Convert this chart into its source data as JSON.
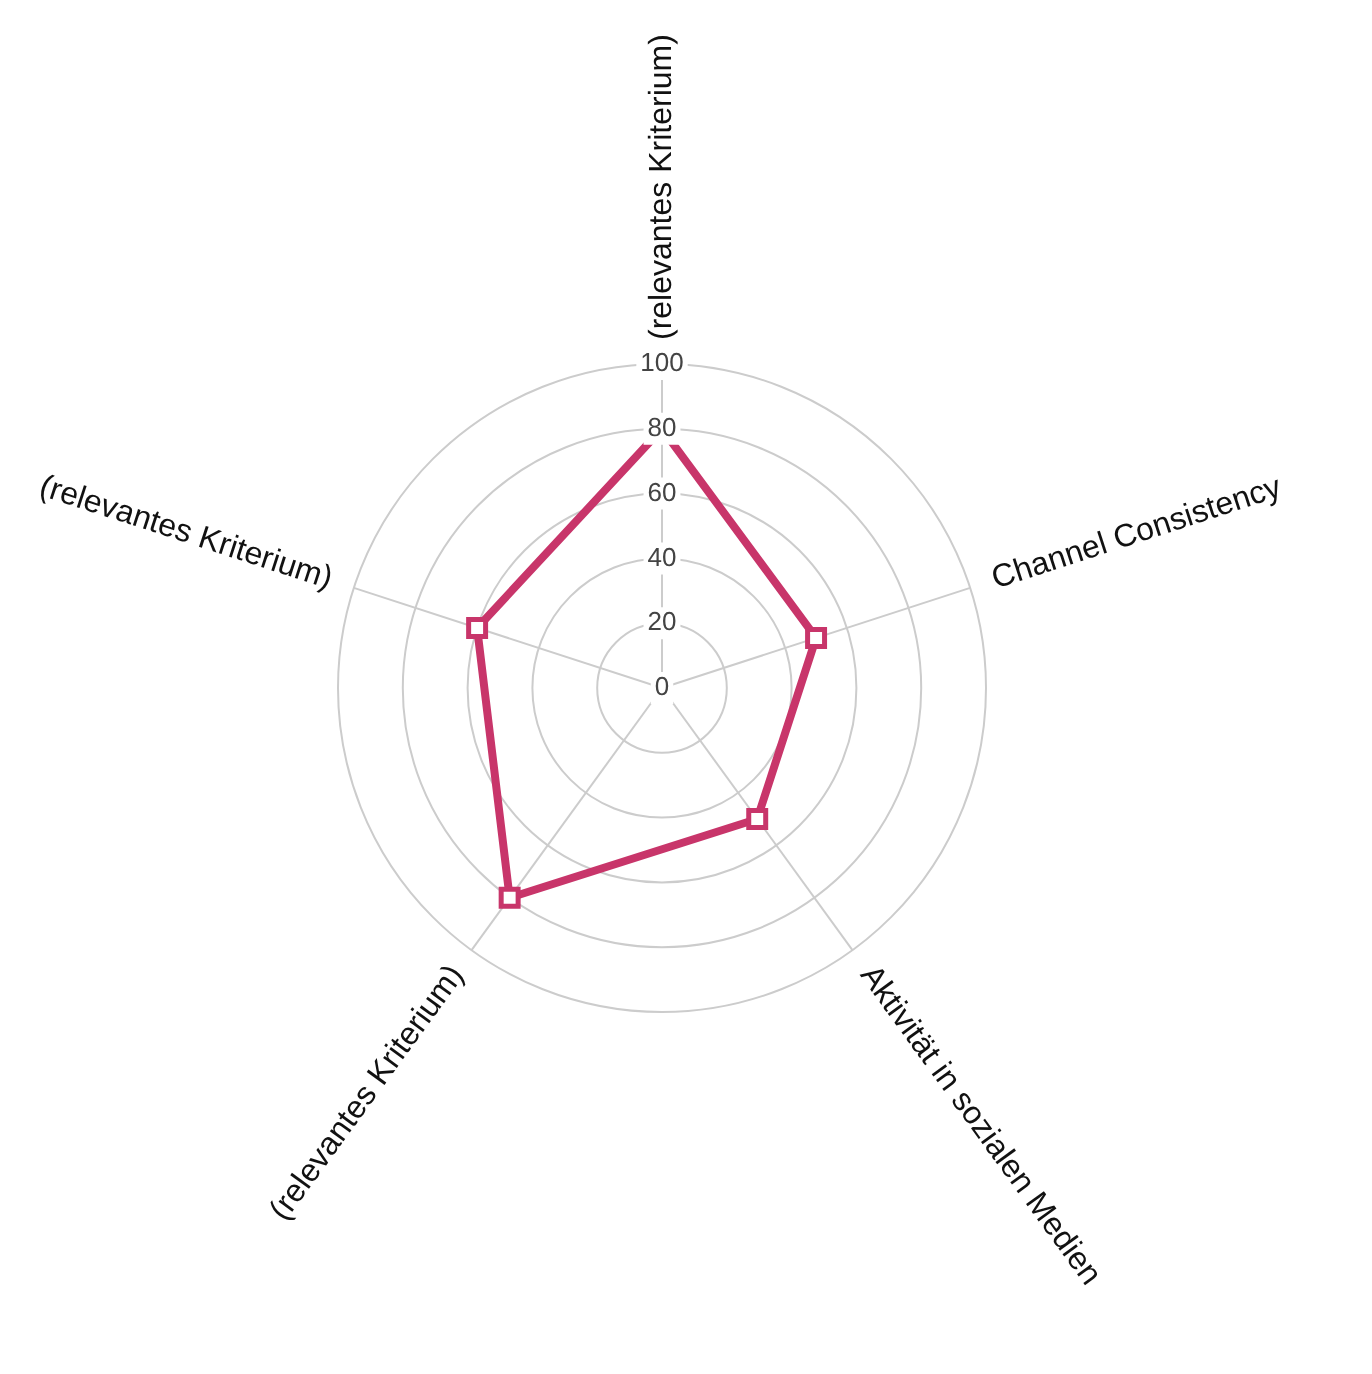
{
  "chart_data": {
    "type": "radar",
    "categories": [
      "(relevantes Kriterium)",
      "Channel Consistency",
      "Aktivität in sozialen Medien",
      "(relevantes Kriterium)",
      "(relevantes Kriterium)"
    ],
    "series": [
      {
        "color": "#c8356a",
        "values": [
          80,
          50,
          50,
          80,
          60
        ]
      }
    ],
    "ylim": [
      0,
      100
    ],
    "yticks": [
      0,
      20,
      40,
      60,
      80,
      100
    ],
    "grid": true,
    "marker": "square",
    "line_style": "solid"
  }
}
